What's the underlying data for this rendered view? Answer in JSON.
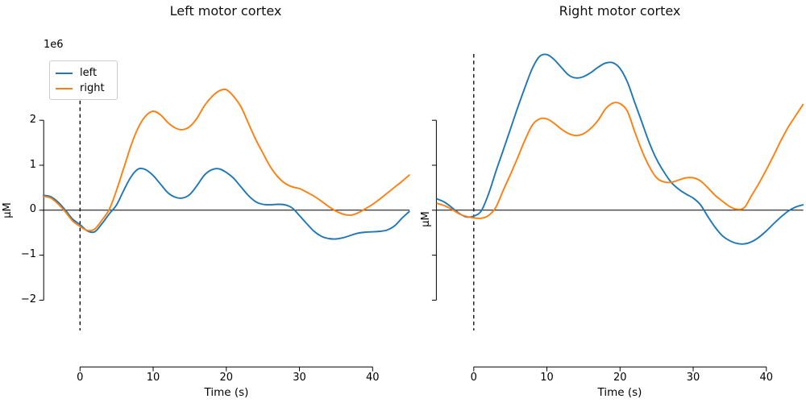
{
  "figure": {
    "background": "#ffffff",
    "accent_colors": {
      "series_left": "#1f77b4",
      "series_right": "#ff7f0e",
      "axis": "#000000"
    }
  },
  "chart_data": [
    {
      "type": "line",
      "title": "Left motor cortex",
      "xlabel": "Time (s)",
      "ylabel": "μM",
      "y_offset_label": "1e6",
      "note": "series values are in units of 1e6 μM (per axis offset label)",
      "xlim": [
        -5,
        45
      ],
      "ylim": [
        -3.5,
        3.5
      ],
      "x_ticks": [
        0,
        10,
        20,
        30,
        40
      ],
      "y_ticks": [
        2,
        1,
        0,
        -1,
        -2
      ],
      "y_tick_labels_visible": true,
      "grid": false,
      "legend": {
        "visible": true,
        "position": "upper left",
        "entries": [
          "left",
          "right"
        ]
      },
      "annotations": {
        "hline_y": 0,
        "vline_x": 0,
        "vline_style": "dashed"
      },
      "x": [
        -5,
        -4,
        -3,
        -2,
        -1,
        0,
        1,
        2,
        3,
        4,
        5,
        6,
        7,
        8,
        9,
        10,
        11,
        12,
        13,
        14,
        15,
        16,
        17,
        18,
        19,
        20,
        21,
        22,
        23,
        24,
        25,
        26,
        27,
        28,
        29,
        30,
        31,
        32,
        33,
        34,
        35,
        36,
        37,
        38,
        39,
        40,
        41,
        42,
        43,
        44,
        45
      ],
      "series": [
        {
          "name": "left",
          "color": "#1f77b4",
          "values": [
            0.33,
            0.3,
            0.18,
            0.0,
            -0.2,
            -0.32,
            -0.46,
            -0.48,
            -0.3,
            -0.08,
            0.12,
            0.45,
            0.75,
            0.92,
            0.9,
            0.77,
            0.58,
            0.39,
            0.29,
            0.27,
            0.35,
            0.55,
            0.78,
            0.9,
            0.92,
            0.84,
            0.71,
            0.52,
            0.33,
            0.19,
            0.13,
            0.12,
            0.13,
            0.12,
            0.05,
            -0.12,
            -0.3,
            -0.47,
            -0.58,
            -0.63,
            -0.64,
            -0.61,
            -0.56,
            -0.51,
            -0.49,
            -0.48,
            -0.47,
            -0.44,
            -0.35,
            -0.18,
            -0.03
          ]
        },
        {
          "name": "right",
          "color": "#ff7f0e",
          "values": [
            0.31,
            0.27,
            0.14,
            -0.04,
            -0.24,
            -0.36,
            -0.45,
            -0.42,
            -0.22,
            0.02,
            0.45,
            0.95,
            1.45,
            1.85,
            2.1,
            2.2,
            2.12,
            1.95,
            1.83,
            1.79,
            1.86,
            2.05,
            2.32,
            2.52,
            2.65,
            2.68,
            2.53,
            2.3,
            1.94,
            1.58,
            1.27,
            0.97,
            0.75,
            0.6,
            0.52,
            0.48,
            0.4,
            0.31,
            0.2,
            0.08,
            -0.02,
            -0.09,
            -0.11,
            -0.06,
            0.03,
            0.13,
            0.25,
            0.38,
            0.51,
            0.64,
            0.78
          ]
        }
      ]
    },
    {
      "type": "line",
      "title": "Right motor cortex",
      "xlabel": "Time (s)",
      "ylabel": "μM",
      "y_offset_label": "",
      "note": "series values are in units of 1e6 μM; y tick labels hidden (shared axis)",
      "xlim": [
        -5,
        45
      ],
      "ylim": [
        -3.5,
        3.5
      ],
      "x_ticks": [
        0,
        10,
        20,
        30,
        40
      ],
      "y_ticks": [
        2,
        1,
        0,
        -1,
        -2
      ],
      "y_tick_labels_visible": false,
      "grid": false,
      "legend": {
        "visible": false,
        "position": null,
        "entries": []
      },
      "annotations": {
        "hline_y": 0,
        "vline_x": 0,
        "vline_style": "dashed"
      },
      "x": [
        -5,
        -4,
        -3,
        -2,
        -1,
        0,
        1,
        2,
        3,
        4,
        5,
        6,
        7,
        8,
        9,
        10,
        11,
        12,
        13,
        14,
        15,
        16,
        17,
        18,
        19,
        20,
        21,
        22,
        23,
        24,
        25,
        26,
        27,
        28,
        29,
        30,
        31,
        32,
        33,
        34,
        35,
        36,
        37,
        38,
        39,
        40,
        41,
        42,
        43,
        44,
        45
      ],
      "series": [
        {
          "name": "left",
          "color": "#1f77b4",
          "values": [
            0.25,
            0.18,
            0.06,
            -0.07,
            -0.15,
            -0.13,
            -0.02,
            0.35,
            0.85,
            1.32,
            1.8,
            2.28,
            2.73,
            3.15,
            3.42,
            3.46,
            3.35,
            3.17,
            3.0,
            2.94,
            2.97,
            3.06,
            3.18,
            3.27,
            3.28,
            3.15,
            2.85,
            2.4,
            1.95,
            1.5,
            1.13,
            0.85,
            0.62,
            0.47,
            0.36,
            0.27,
            0.12,
            -0.14,
            -0.38,
            -0.57,
            -0.68,
            -0.74,
            -0.75,
            -0.7,
            -0.6,
            -0.46,
            -0.3,
            -0.15,
            -0.02,
            0.07,
            0.12
          ]
        },
        {
          "name": "right",
          "color": "#ff7f0e",
          "values": [
            0.15,
            0.1,
            0.02,
            -0.08,
            -0.14,
            -0.17,
            -0.18,
            -0.12,
            0.06,
            0.43,
            0.79,
            1.17,
            1.56,
            1.89,
            2.03,
            2.03,
            1.93,
            1.8,
            1.7,
            1.66,
            1.7,
            1.82,
            2.0,
            2.25,
            2.38,
            2.37,
            2.2,
            1.75,
            1.32,
            0.97,
            0.72,
            0.63,
            0.62,
            0.67,
            0.72,
            0.72,
            0.65,
            0.5,
            0.33,
            0.2,
            0.08,
            0.02,
            0.06,
            0.33,
            0.6,
            0.9,
            1.22,
            1.55,
            1.85,
            2.1,
            2.35
          ]
        }
      ]
    }
  ]
}
